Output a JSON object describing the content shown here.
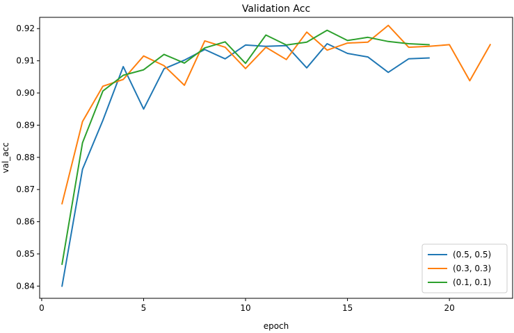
{
  "chart_data": {
    "type": "line",
    "title": "Validation Acc",
    "xlabel": "epoch",
    "ylabel": "val_acc",
    "xlim": [
      -0.1,
      23.1
    ],
    "ylim": [
      0.8362,
      0.9235
    ],
    "xticks": [
      0,
      5,
      10,
      15,
      20
    ],
    "yticks": [
      0.84,
      0.85,
      0.86,
      0.87,
      0.88,
      0.89,
      0.9,
      0.91,
      0.92
    ],
    "ytick_labels": [
      "0.84",
      "0.85",
      "0.86",
      "0.87",
      "0.88",
      "0.89",
      "0.90",
      "0.91",
      "0.92"
    ],
    "grid": false,
    "legend_position": "bottom-right",
    "series": [
      {
        "name": "(0.5, 0.5)",
        "color": "#1f77b4",
        "x": [
          1,
          2,
          3,
          4,
          5,
          6,
          7,
          8,
          9,
          10,
          11,
          12,
          13,
          14,
          15,
          16,
          17,
          18,
          19
        ],
        "values": [
          0.84,
          0.8763,
          0.8915,
          0.9082,
          0.895,
          0.9075,
          0.9102,
          0.9135,
          0.9106,
          0.9149,
          0.9145,
          0.9147,
          0.9078,
          0.9153,
          0.9123,
          0.9112,
          0.9064,
          0.9106,
          0.9109
        ]
      },
      {
        "name": "(0.3, 0.3)",
        "color": "#ff7f0e",
        "x": [
          1,
          2,
          3,
          4,
          5,
          6,
          7,
          8,
          9,
          10,
          11,
          12,
          13,
          14,
          15,
          16,
          17,
          18,
          19,
          20,
          21,
          22
        ],
        "values": [
          0.8656,
          0.8911,
          0.9021,
          0.9042,
          0.9115,
          0.9085,
          0.9024,
          0.9162,
          0.9142,
          0.9076,
          0.9142,
          0.9104,
          0.9189,
          0.9133,
          0.9155,
          0.9158,
          0.921,
          0.9142,
          0.9145,
          0.915,
          0.9038,
          0.915
        ]
      },
      {
        "name": "(0.1, 0.1)",
        "color": "#2ca02c",
        "x": [
          1,
          2,
          3,
          4,
          5,
          6,
          7,
          8,
          9,
          10,
          11,
          12,
          13,
          14,
          15,
          16,
          17,
          18,
          19
        ],
        "values": [
          0.8468,
          0.8845,
          0.9006,
          0.9055,
          0.9072,
          0.912,
          0.9093,
          0.914,
          0.9159,
          0.9092,
          0.918,
          0.9149,
          0.9158,
          0.9195,
          0.9163,
          0.9173,
          0.916,
          0.9153,
          0.915
        ]
      }
    ]
  }
}
